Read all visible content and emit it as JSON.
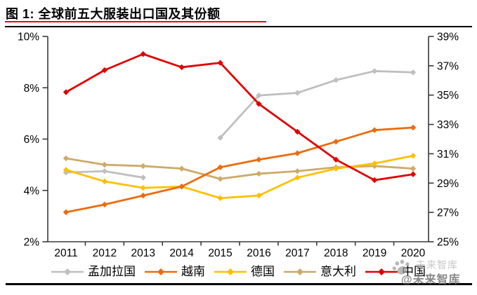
{
  "figure": {
    "title": "图 1: 全球前五大服装出口国及其份额"
  },
  "watermark": {
    "light_text": "未来智库",
    "dark_text": "@未来智库",
    "icon": "paw-icon"
  },
  "chart_data": {
    "type": "line",
    "title": "全球前五大服装出口国及其份额",
    "categories": [
      "2011",
      "2012",
      "2013",
      "2014",
      "2015",
      "2016",
      "2017",
      "2018",
      "2019",
      "2020"
    ],
    "left_axis": {
      "min": 2,
      "max": 10,
      "step": 2,
      "tick_labels": [
        "10%",
        "8%",
        "6%",
        "4%",
        "2%"
      ],
      "format": "percent"
    },
    "right_axis": {
      "min": 25,
      "max": 39,
      "step": 2,
      "tick_labels": [
        "39%",
        "37%",
        "35%",
        "33%",
        "31%",
        "29%",
        "27%",
        "25%"
      ],
      "format": "percent"
    },
    "grid": false,
    "legend_position": "bottom",
    "marker": "diamond",
    "series": [
      {
        "name": "孟加拉国",
        "color": "#BFBFBF",
        "axis": "left",
        "values": [
          4.7,
          4.75,
          4.5,
          null,
          6.05,
          7.7,
          7.8,
          8.3,
          8.65,
          8.6
        ]
      },
      {
        "name": "越南",
        "color": "#ED6B0B",
        "axis": "left",
        "values": [
          3.15,
          3.45,
          3.8,
          4.15,
          4.9,
          5.2,
          5.45,
          5.9,
          6.35,
          6.45
        ]
      },
      {
        "name": "德国",
        "color": "#FFC000",
        "axis": "left",
        "values": [
          4.8,
          4.35,
          4.1,
          4.15,
          3.7,
          3.8,
          4.5,
          4.85,
          5.05,
          5.35
        ]
      },
      {
        "name": "意大利",
        "color": "#CDAA66",
        "axis": "left",
        "values": [
          5.25,
          5.0,
          4.95,
          4.85,
          4.45,
          4.65,
          4.75,
          4.9,
          4.95,
          4.85
        ]
      },
      {
        "name": "中国",
        "color": "#E00000",
        "axis": "right",
        "values": [
          35.2,
          36.7,
          37.8,
          36.9,
          37.2,
          34.4,
          32.5,
          30.6,
          29.2,
          29.6
        ]
      }
    ],
    "draw_order": [
      0,
      3,
      2,
      1,
      4
    ]
  }
}
